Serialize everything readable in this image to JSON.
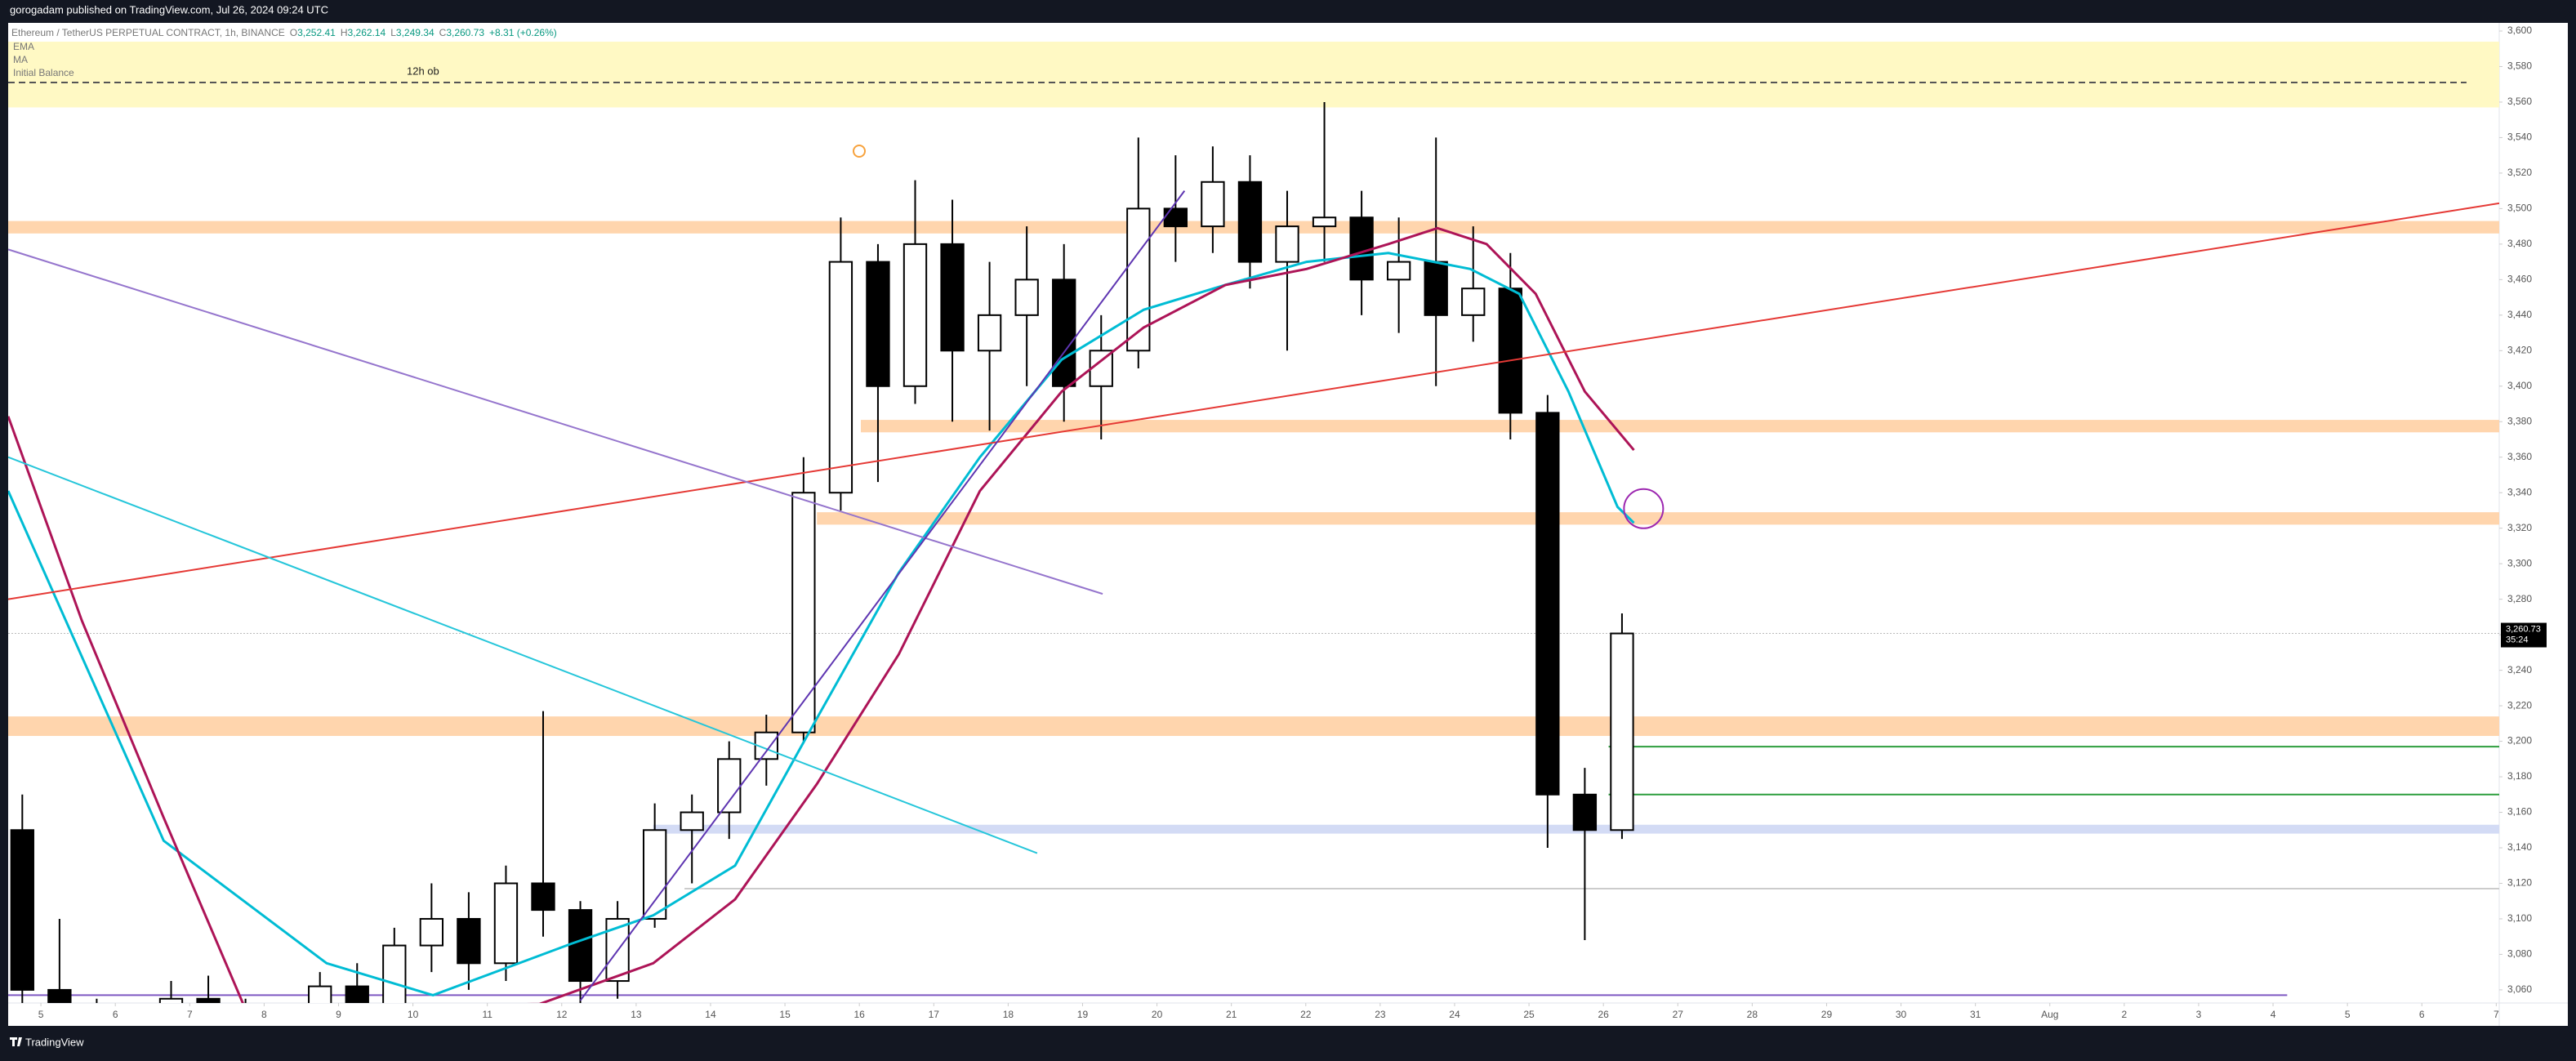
{
  "header": {
    "text": "gorogadam published on TradingView.com, Jul 26, 2024 09:24 UTC"
  },
  "footer": {
    "brand": "TradingView"
  },
  "chart_data": {
    "type": "candlestick",
    "title": "Ethereum / TetherUS PERPETUAL CONTRACT, 1h, BINANCE",
    "ohlc_legend": [
      {
        "label": "O",
        "value": "3,252.41"
      },
      {
        "label": "H",
        "value": "3,262.14"
      },
      {
        "label": "L",
        "value": "3,249.34"
      },
      {
        "label": "C",
        "value": "3,260.73"
      }
    ],
    "change": "+8.31 (+0.26%)",
    "indicators": [
      "EMA",
      "MA",
      "Initial Balance"
    ],
    "last_price": {
      "value": 3260.73,
      "label": "3,260.73",
      "countdown": "35:24"
    },
    "x": [
      4.75,
      5.25,
      5.75,
      6.25,
      6.75,
      7.25,
      7.75,
      8.25,
      8.75,
      9.25,
      9.75,
      10.25,
      10.75,
      11.25,
      11.75,
      12.25,
      12.75,
      13.25,
      13.75,
      14.25,
      14.75,
      15.25,
      15.75,
      16.25,
      16.75,
      17.25,
      17.75,
      18.25,
      18.75,
      19.25,
      19.75,
      20.25,
      20.75,
      21.25,
      21.75,
      22.25,
      22.75,
      23.25,
      23.75,
      24.25,
      24.75,
      25.25,
      25.75,
      26.25
    ],
    "open": [
      3150,
      3060,
      3045,
      3030,
      3035,
      3055,
      3045,
      3030,
      3040,
      3062,
      3050,
      3085,
      3100,
      3075,
      3120,
      3105,
      3065,
      3100,
      3150,
      3160,
      3190,
      3205,
      3340,
      3470,
      3400,
      3480,
      3420,
      3440,
      3460,
      3400,
      3420,
      3500,
      3490,
      3515,
      3470,
      3490,
      3495,
      3460,
      3470,
      3440,
      3455,
      3385,
      3170,
      3150
    ],
    "high": [
      3170,
      3100,
      3055,
      3045,
      3065,
      3068,
      3055,
      3048,
      3070,
      3075,
      3095,
      3120,
      3115,
      3130,
      3217,
      3110,
      3110,
      3165,
      3170,
      3200,
      3215,
      3360,
      3495,
      3480,
      3516,
      3505,
      3470,
      3490,
      3480,
      3440,
      3540,
      3530,
      3535,
      3530,
      3510,
      3560,
      3510,
      3495,
      3540,
      3490,
      3475,
      3395,
      3185,
      3272
    ],
    "low": [
      3050,
      3040,
      3020,
      3010,
      3030,
      3040,
      3020,
      3015,
      3035,
      3040,
      3045,
      3070,
      3060,
      3065,
      3090,
      3050,
      3055,
      3095,
      3120,
      3145,
      3175,
      3200,
      3330,
      3346,
      3390,
      3380,
      3375,
      3400,
      3380,
      3370,
      3410,
      3470,
      3475,
      3455,
      3420,
      3470,
      3440,
      3430,
      3400,
      3425,
      3370,
      3140,
      3088,
      3145
    ],
    "close": [
      3060,
      3045,
      3030,
      3035,
      3055,
      3045,
      3030,
      3040,
      3062,
      3050,
      3085,
      3100,
      3075,
      3120,
      3105,
      3065,
      3100,
      3150,
      3160,
      3190,
      3205,
      3340,
      3470,
      3400,
      3480,
      3420,
      3440,
      3460,
      3400,
      3420,
      3500,
      3490,
      3515,
      3470,
      3490,
      3495,
      3460,
      3470,
      3440,
      3455,
      3385,
      3170,
      3150,
      3260.73
    ],
    "up_color": "#ffffff",
    "down_color": "#000000",
    "lines": [
      {
        "name": "EMA",
        "color": "#00bcd4",
        "x": [
          4.56,
          6.65,
          8.84,
          10.27,
          12.13,
          13.23,
          14.33,
          15.43,
          16.53,
          17.62,
          18.72,
          19.82,
          20.92,
          22.01,
          23.11,
          24.21,
          24.87,
          25.53,
          26.19,
          26.41
        ],
        "y": [
          3341,
          3144,
          3075,
          3057,
          3086,
          3102,
          3130,
          3213,
          3295,
          3360,
          3415,
          3443,
          3457,
          3470,
          3475,
          3466,
          3452,
          3397,
          3332,
          3323
        ]
      },
      {
        "name": "MA",
        "color": "#ad1457",
        "x": [
          4.56,
          5.55,
          6.65,
          7.74,
          11.7,
          13.23,
          14.33,
          15.43,
          16.53,
          17.62,
          18.72,
          19.82,
          20.92,
          22.01,
          23.11,
          23.77,
          24.43,
          25.09,
          25.75,
          26.41
        ],
        "y": [
          3383,
          3268,
          3157,
          3050,
          3052,
          3075,
          3111,
          3176,
          3249,
          3341,
          3397,
          3433,
          3457,
          3466,
          3480,
          3489,
          3480,
          3452,
          3397,
          3364
        ]
      }
    ],
    "zones": [
      {
        "from": 3557,
        "to": 3594,
        "start": 4.56,
        "color": "#fff9c4",
        "label": "12h ob"
      },
      {
        "from": 3486,
        "to": 3493,
        "start": 4.56,
        "color": "#ffd5ad"
      },
      {
        "from": 3374,
        "to": 3381,
        "start": 16.02,
        "color": "#ffd5ad"
      },
      {
        "from": 3322,
        "to": 3329,
        "start": 15.43,
        "color": "#ffd5ad"
      },
      {
        "from": 3203,
        "to": 3214,
        "start": 4.56,
        "color": "#ffd5ad"
      },
      {
        "from": 3148,
        "to": 3153,
        "start": 13.23,
        "color": "#d3dbf5"
      }
    ],
    "levels": [
      {
        "price": 3571,
        "start": 4.56,
        "end": 37.6,
        "color": "#555555",
        "dash": true
      },
      {
        "price": 3117,
        "start": 13.65,
        "end": 38.04,
        "color": "#cccccc",
        "dash": false
      },
      {
        "price": 3197,
        "start": 26.07,
        "end": 38.04,
        "color": "#2e9e3e",
        "dash": false
      },
      {
        "price": 3170,
        "start": 26.07,
        "end": 38.04,
        "color": "#2e9e3e",
        "dash": false
      },
      {
        "price": 3057,
        "start": 4.56,
        "end": 35.19,
        "color": "#7e57c2",
        "dash": false
      }
    ],
    "trendlines": [
      {
        "x": [
          4.56,
          38.04
        ],
        "y": [
          3280,
          3503
        ],
        "color": "#e53935"
      },
      {
        "x": [
          4.56,
          19.27
        ],
        "y": [
          3477,
          3283
        ],
        "color": "#9575cd"
      },
      {
        "x": [
          4.56,
          18.39
        ],
        "y": [
          3360,
          3137
        ],
        "color": "#26c6da"
      },
      {
        "x": [
          12.25,
          20.37
        ],
        "y": [
          3054,
          3510
        ],
        "color": "#5e35b1"
      }
    ],
    "circle": {
      "x": 26.54,
      "y": 3331,
      "color": "#9c27b0"
    },
    "xlim": [
      4.56,
      38.04
    ],
    "ylim": [
      3052.6,
      3604.6
    ],
    "xticks": [
      5,
      6,
      7,
      8,
      9,
      10,
      11,
      12,
      13,
      14,
      15,
      16,
      17,
      18,
      19,
      20,
      21,
      22,
      23,
      24,
      25,
      26,
      27,
      28,
      29,
      30,
      31,
      {
        "value": 32,
        "label": "Aug"
      },
      {
        "value": 33,
        "label": "2"
      },
      {
        "value": 34,
        "label": "3"
      },
      {
        "value": 35,
        "label": "4"
      },
      {
        "value": 36,
        "label": "5"
      },
      {
        "value": 37,
        "label": "6"
      },
      {
        "value": 38,
        "label": "7"
      }
    ],
    "yticks": [
      {
        "value": 3060,
        "label": "3,060"
      },
      {
        "value": 3080,
        "label": "3,080"
      },
      {
        "value": 3100,
        "label": "3,100"
      },
      {
        "value": 3120,
        "label": "3,120"
      },
      {
        "value": 3140,
        "label": "3,140"
      },
      {
        "value": 3160,
        "label": "3,160"
      },
      {
        "value": 3180,
        "label": "3,180"
      },
      {
        "value": 3200,
        "label": "3,200"
      },
      {
        "value": 3220,
        "label": "3,220"
      },
      {
        "value": 3240,
        "label": "3,240"
      },
      {
        "value": 3260,
        "label": "3,260"
      },
      {
        "value": 3280,
        "label": "3,280"
      },
      {
        "value": 3300,
        "label": "3,300"
      },
      {
        "value": 3320,
        "label": "3,320"
      },
      {
        "value": 3340,
        "label": "3,340"
      },
      {
        "value": 3360,
        "label": "3,360"
      },
      {
        "value": 3380,
        "label": "3,380"
      },
      {
        "value": 3400,
        "label": "3,400"
      },
      {
        "value": 3420,
        "label": "3,420"
      },
      {
        "value": 3440,
        "label": "3,440"
      },
      {
        "value": 3460,
        "label": "3,460"
      },
      {
        "value": 3480,
        "label": "3,480"
      },
      {
        "value": 3500,
        "label": "3,500"
      },
      {
        "value": 3520,
        "label": "3,520"
      },
      {
        "value": 3540,
        "label": "3,540"
      },
      {
        "value": 3560,
        "label": "3,560"
      },
      {
        "value": 3580,
        "label": "3,580"
      },
      {
        "value": 3600,
        "label": "3,600"
      }
    ],
    "grid": false
  }
}
